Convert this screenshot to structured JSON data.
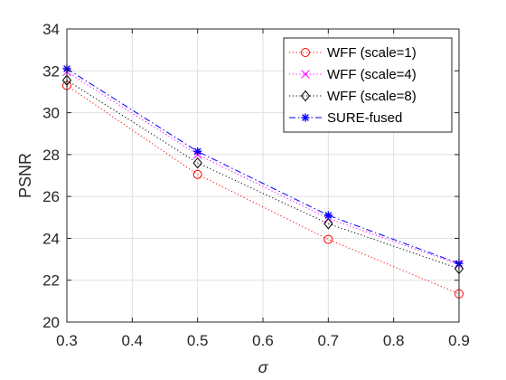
{
  "chart_data": {
    "type": "line",
    "xlabel": "σ",
    "ylabel": "PSNR",
    "xlim": [
      0.3,
      0.9
    ],
    "ylim": [
      20,
      34
    ],
    "xticks": [
      0.3,
      0.4,
      0.5,
      0.6,
      0.7,
      0.8,
      0.9
    ],
    "yticks": [
      20,
      22,
      24,
      26,
      28,
      30,
      32,
      34
    ],
    "xtick_labels": [
      "0.3",
      "0.4",
      "0.5",
      "0.6",
      "0.7",
      "0.8",
      "0.9"
    ],
    "ytick_labels": [
      "20",
      "22",
      "24",
      "26",
      "28",
      "30",
      "32",
      "34"
    ],
    "grid": true,
    "legend_position": "top-right",
    "x": [
      0.3,
      0.5,
      0.7,
      0.9
    ],
    "series": [
      {
        "name": "WFF (scale=1)",
        "values": [
          31.3,
          27.05,
          23.95,
          21.35
        ],
        "color": "#ff0000",
        "marker": "circle",
        "dash": "dotted"
      },
      {
        "name": "WFF (scale=4)",
        "values": [
          31.95,
          28.0,
          24.95,
          22.75
        ],
        "color": "#ff00ff",
        "marker": "x",
        "dash": "dotted"
      },
      {
        "name": "WFF (scale=8)",
        "values": [
          31.55,
          27.6,
          24.7,
          22.55
        ],
        "color": "#000000",
        "marker": "diamond",
        "dash": "dotted"
      },
      {
        "name": "SURE-fused",
        "values": [
          32.1,
          28.15,
          25.1,
          22.8
        ],
        "color": "#0000ff",
        "marker": "asterisk",
        "dash": "dashdot"
      }
    ]
  }
}
